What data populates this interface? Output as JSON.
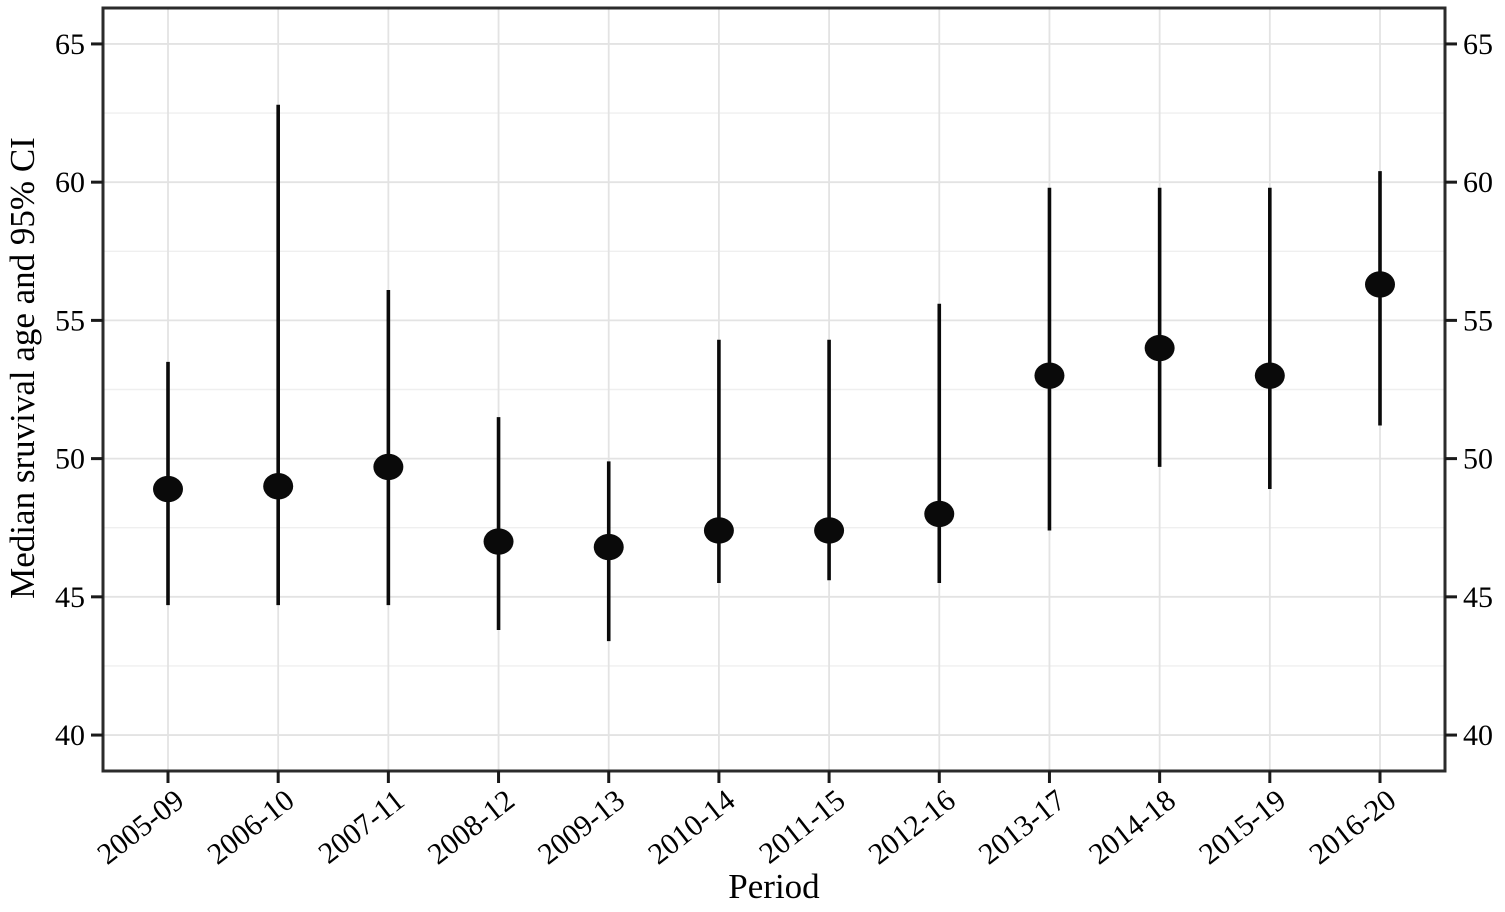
{
  "figure": {
    "background": "#ffffff",
    "panel_background": "#ffffff",
    "grid_major_color": "#e3e3e3",
    "grid_minor_color": "#efefef",
    "border_color": "#2b2b2b",
    "tick_color": "#1a1a1a",
    "text_color": "#000000",
    "point_color": "#0a0a0a"
  },
  "chart_data": {
    "type": "pointrange",
    "title": "",
    "xlabel": "Period",
    "ylabel": "Median sruvival age and 95% CI",
    "legend_position": "none",
    "grid": "horizontal major+minor light gray; vertical major at each category",
    "y_axis_sides": [
      "left",
      "right"
    ],
    "ylim": [
      38.7,
      66.3
    ],
    "yticks": [
      40,
      45,
      50,
      55,
      60,
      65
    ],
    "yticks_minor": [
      42.5,
      47.5,
      52.5,
      57.5,
      62.5
    ],
    "x_tick_rotation_deg": -38,
    "categories": [
      "2005-09",
      "2006-10",
      "2007-11",
      "2008-12",
      "2009-13",
      "2010-14",
      "2011-15",
      "2012-16",
      "2013-17",
      "2014-18",
      "2015-19",
      "2016-20"
    ],
    "series": [
      {
        "name": "Median survival age and 95% CI",
        "points": [
          {
            "period": "2005-09",
            "median": 48.9,
            "ci_low": 44.7,
            "ci_high": 53.5
          },
          {
            "period": "2006-10",
            "median": 49.0,
            "ci_low": 44.7,
            "ci_high": 62.8
          },
          {
            "period": "2007-11",
            "median": 49.7,
            "ci_low": 44.7,
            "ci_high": 56.1
          },
          {
            "period": "2008-12",
            "median": 47.0,
            "ci_low": 43.8,
            "ci_high": 51.5
          },
          {
            "period": "2009-13",
            "median": 46.8,
            "ci_low": 43.4,
            "ci_high": 49.9
          },
          {
            "period": "2010-14",
            "median": 47.4,
            "ci_low": 45.5,
            "ci_high": 54.3
          },
          {
            "period": "2011-15",
            "median": 47.4,
            "ci_low": 45.6,
            "ci_high": 54.3
          },
          {
            "period": "2012-16",
            "median": 48.0,
            "ci_low": 45.5,
            "ci_high": 55.6
          },
          {
            "period": "2013-17",
            "median": 53.0,
            "ci_low": 47.4,
            "ci_high": 59.8
          },
          {
            "period": "2014-18",
            "median": 54.0,
            "ci_low": 49.7,
            "ci_high": 59.8
          },
          {
            "period": "2015-19",
            "median": 53.0,
            "ci_low": 48.9,
            "ci_high": 59.8
          },
          {
            "period": "2016-20",
            "median": 56.3,
            "ci_low": 51.2,
            "ci_high": 60.4
          }
        ]
      }
    ]
  }
}
